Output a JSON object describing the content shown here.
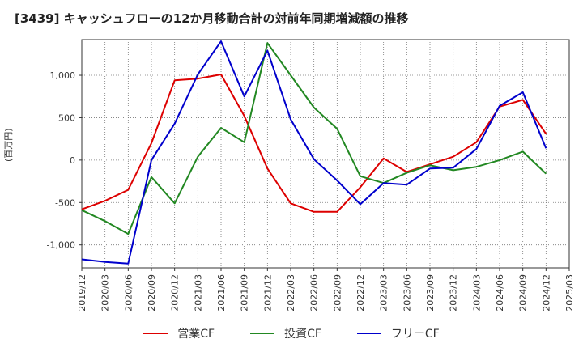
{
  "chart_data": {
    "type": "line",
    "title": "[3439]  キャッシュフローの12か月移動合計の対前年同期増減額の推移",
    "ylabel": "(百万円)",
    "xlabel": "",
    "ylim": [
      -1270,
      1420
    ],
    "yticks": [
      1000,
      500,
      0,
      -500,
      -1000
    ],
    "ytick_labels": [
      "1,000",
      "500",
      "0",
      "-500",
      "-1,000"
    ],
    "grid": true,
    "legend_position": "bottom",
    "x": [
      "2019/12",
      "2020/03",
      "2020/06",
      "2020/09",
      "2020/12",
      "2021/03",
      "2021/06",
      "2021/09",
      "2021/12",
      "2022/03",
      "2022/06",
      "2022/09",
      "2022/12",
      "2023/03",
      "2023/06",
      "2023/09",
      "2023/12",
      "2024/03",
      "2024/06",
      "2024/09",
      "2024/12",
      "2025/03"
    ],
    "series": [
      {
        "name": "営業CF",
        "color": "#dd0000",
        "values": [
          -580,
          -480,
          -350,
          200,
          940,
          960,
          1010,
          520,
          -100,
          -510,
          -610,
          -610,
          -320,
          20,
          -140,
          -50,
          40,
          210,
          630,
          710,
          310,
          null
        ]
      },
      {
        "name": "投資CF",
        "color": "#228822",
        "values": [
          -590,
          -720,
          -870,
          -200,
          -510,
          40,
          380,
          210,
          1380,
          1000,
          620,
          370,
          -190,
          -270,
          -150,
          -60,
          -120,
          -80,
          0,
          100,
          -160,
          null
        ]
      },
      {
        "name": "フリーCF",
        "color": "#0000cc",
        "values": [
          -1170,
          -1200,
          -1220,
          0,
          430,
          1010,
          1400,
          750,
          1290,
          480,
          10,
          -240,
          -520,
          -270,
          -290,
          -100,
          -90,
          130,
          640,
          800,
          140,
          null
        ]
      }
    ]
  }
}
